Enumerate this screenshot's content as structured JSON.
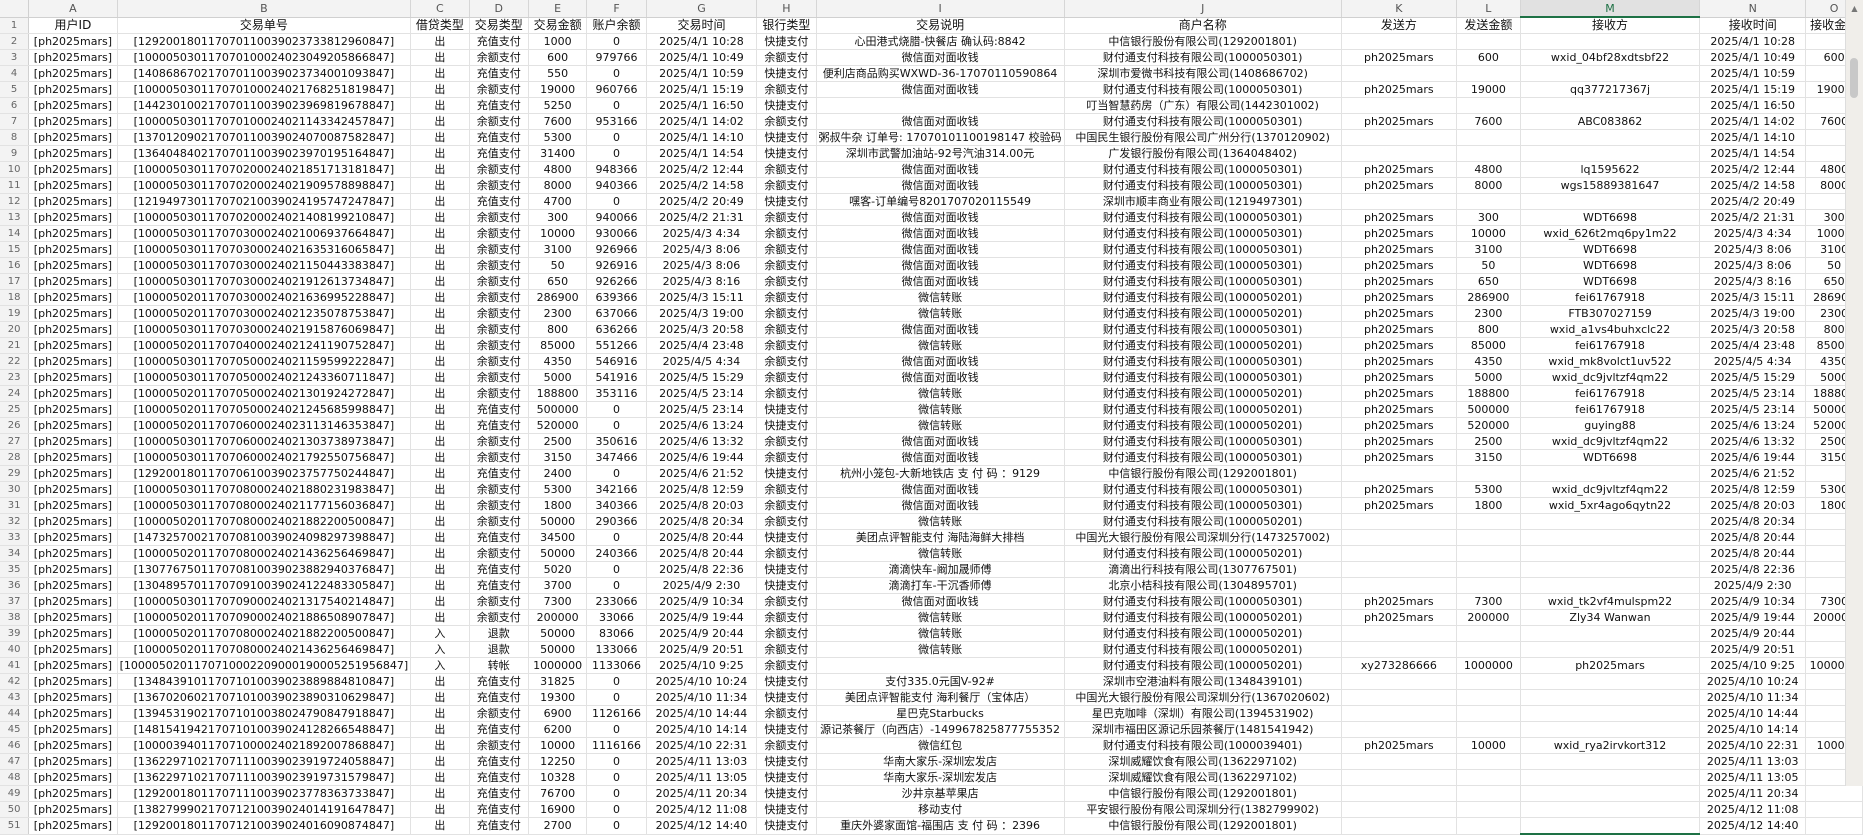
{
  "columns": [
    "A",
    "B",
    "C",
    "D",
    "E",
    "F",
    "G",
    "H",
    "I",
    "J",
    "K",
    "L",
    "M",
    "N",
    "O"
  ],
  "selected_column": "M",
  "accent_color": "#1e7145",
  "headers": [
    "用户ID",
    "交易单号",
    "借贷类型",
    "交易类型",
    "交易金额",
    "账户余额",
    "交易时间",
    "银行类型",
    "交易说明",
    "商户名称",
    "发送方",
    "发送金额",
    "接收方",
    "接收时间",
    "接收金额"
  ],
  "rows": [
    [
      "[ph2025mars]",
      "[129200180117070110039023733812960847]",
      "出",
      "充值支付",
      "1000",
      "0",
      "2025/4/1 10:28",
      "快捷支付",
      "心田港式烧腊-快餐店 确认码:8842",
      "中信银行股份有限公司(1292001801)",
      "",
      "",
      "",
      "2025/4/1 10:28",
      ""
    ],
    [
      "[ph2025mars]",
      "[100005030117070100024023049205866847]",
      "出",
      "余额支付",
      "600",
      "979766",
      "2025/4/1 10:49",
      "余额支付",
      "微信面对面收钱",
      "财付通支付科技有限公司(1000050301)",
      "ph2025mars",
      "600",
      "wxid_04bf28xdtsbf22",
      "2025/4/1 10:49",
      "600"
    ],
    [
      "[ph2025mars]",
      "[140868670217070110039023734001093847]",
      "出",
      "充值支付",
      "550",
      "0",
      "2025/4/1 10:59",
      "快捷支付",
      "便利店商品购买WXWD-36-17070110590864",
      "深圳市爱微书科技有限公司(1408686702)",
      "",
      "",
      "",
      "2025/4/1 10:59",
      ""
    ],
    [
      "[ph2025mars]",
      "[100005030117070100024021768251819847]",
      "出",
      "余额支付",
      "19000",
      "960766",
      "2025/4/1 15:19",
      "余额支付",
      "微信面对面收钱",
      "财付通支付科技有限公司(1000050301)",
      "ph2025mars",
      "19000",
      "qq377217367j",
      "2025/4/1 15:19",
      "19000"
    ],
    [
      "[ph2025mars]",
      "[144230100217070110039023969819678847]",
      "出",
      "充值支付",
      "5250",
      "0",
      "2025/4/1 16:50",
      "快捷支付",
      "",
      "叮当智慧药房（广东）有限公司(1442301002)",
      "",
      "",
      "",
      "2025/4/1 16:50",
      ""
    ],
    [
      "[ph2025mars]",
      "[100005030117070100024021143342457847]",
      "出",
      "余额支付",
      "7600",
      "953166",
      "2025/4/1 14:02",
      "余额支付",
      "微信面对面收钱",
      "财付通支付科技有限公司(1000050301)",
      "ph2025mars",
      "7600",
      "ABC083862",
      "2025/4/1 14:02",
      "7600"
    ],
    [
      "[ph2025mars]",
      "[137012090217070110039024070087582847]",
      "出",
      "充值支付",
      "5300",
      "0",
      "2025/4/1 14:10",
      "快捷支付",
      "粥叔牛杂 订单号: 17070101100198147 校验码",
      "中国民生银行股份有限公司广州分行(1370120902)",
      "",
      "",
      "",
      "2025/4/1 14:10",
      ""
    ],
    [
      "[ph2025mars]",
      "[136404840217070110039023970195164847]",
      "出",
      "充值支付",
      "31400",
      "0",
      "2025/4/1 14:54",
      "快捷支付",
      "深圳市武警加油站-92号汽油314.00元",
      "广发银行股份有限公司(1364048402)",
      "",
      "",
      "",
      "2025/4/1 14:54",
      ""
    ],
    [
      "[ph2025mars]",
      "[100005030117070200024021851713181847]",
      "出",
      "余额支付",
      "4800",
      "948366",
      "2025/4/2 12:44",
      "余额支付",
      "微信面对面收钱",
      "财付通支付科技有限公司(1000050301)",
      "ph2025mars",
      "4800",
      "lq1595622",
      "2025/4/2 12:44",
      "4800"
    ],
    [
      "[ph2025mars]",
      "[100005030117070200024021909578898847]",
      "出",
      "余额支付",
      "8000",
      "940366",
      "2025/4/2 14:58",
      "余额支付",
      "微信面对面收钱",
      "财付通支付科技有限公司(1000050301)",
      "ph2025mars",
      "8000",
      "wgs15889381647",
      "2025/4/2 14:58",
      "8000"
    ],
    [
      "[ph2025mars]",
      "[121949730117070210039024195747247847]",
      "出",
      "充值支付",
      "4700",
      "0",
      "2025/4/2 20:49",
      "快捷支付",
      "嘿客-订单编号8201707020115549",
      "深圳市顺丰商业有限公司(1219497301)",
      "",
      "",
      "",
      "2025/4/2 20:49",
      ""
    ],
    [
      "[ph2025mars]",
      "[100005030117070200024021408199210847]",
      "出",
      "余额支付",
      "300",
      "940066",
      "2025/4/2 21:31",
      "余额支付",
      "微信面对面收钱",
      "财付通支付科技有限公司(1000050301)",
      "ph2025mars",
      "300",
      "WDT6698",
      "2025/4/2 21:31",
      "300"
    ],
    [
      "[ph2025mars]",
      "[100005030117070300024021006937664847]",
      "出",
      "余额支付",
      "10000",
      "930066",
      "2025/4/3 4:34",
      "余额支付",
      "微信面对面收钱",
      "财付通支付科技有限公司(1000050301)",
      "ph2025mars",
      "10000",
      "wxid_626t2mq6py1m22",
      "2025/4/3 4:34",
      "10000"
    ],
    [
      "[ph2025mars]",
      "[100005030117070300024021635316065847]",
      "出",
      "余额支付",
      "3100",
      "926966",
      "2025/4/3 8:06",
      "余额支付",
      "微信面对面收钱",
      "财付通支付科技有限公司(1000050301)",
      "ph2025mars",
      "3100",
      "WDT6698",
      "2025/4/3 8:06",
      "3100"
    ],
    [
      "[ph2025mars]",
      "[100005030117070300024021150443383847]",
      "出",
      "余额支付",
      "50",
      "926916",
      "2025/4/3 8:06",
      "余额支付",
      "微信面对面收钱",
      "财付通支付科技有限公司(1000050301)",
      "ph2025mars",
      "50",
      "WDT6698",
      "2025/4/3 8:06",
      "50"
    ],
    [
      "[ph2025mars]",
      "[100005030117070300024021912613734847]",
      "出",
      "余额支付",
      "650",
      "926266",
      "2025/4/3 8:16",
      "余额支付",
      "微信面对面收钱",
      "财付通支付科技有限公司(1000050301)",
      "ph2025mars",
      "650",
      "WDT6698",
      "2025/4/3 8:16",
      "650"
    ],
    [
      "[ph2025mars]",
      "[100005020117070300024021636995228847]",
      "出",
      "余额支付",
      "286900",
      "639366",
      "2025/4/3 15:11",
      "余额支付",
      "微信转账",
      "财付通支付科技有限公司(1000050201)",
      "ph2025mars",
      "286900",
      "fei61767918",
      "2025/4/3 15:11",
      "286900"
    ],
    [
      "[ph2025mars]",
      "[100005020117070300024021235078753847]",
      "出",
      "余额支付",
      "2300",
      "637066",
      "2025/4/3 19:00",
      "余额支付",
      "微信转账",
      "财付通支付科技有限公司(1000050201)",
      "ph2025mars",
      "2300",
      "FTB307027159",
      "2025/4/3 19:00",
      "2300"
    ],
    [
      "[ph2025mars]",
      "[100005030117070300024021915876069847]",
      "出",
      "余额支付",
      "800",
      "636266",
      "2025/4/3 20:58",
      "余额支付",
      "微信面对面收钱",
      "财付通支付科技有限公司(1000050301)",
      "ph2025mars",
      "800",
      "wxid_a1vs4buhxclc22",
      "2025/4/3 20:58",
      "800"
    ],
    [
      "[ph2025mars]",
      "[100005020117070400024021241190752847]",
      "出",
      "余额支付",
      "85000",
      "551266",
      "2025/4/4 23:48",
      "余额支付",
      "微信转账",
      "财付通支付科技有限公司(1000050201)",
      "ph2025mars",
      "85000",
      "fei61767918",
      "2025/4/4 23:48",
      "85000"
    ],
    [
      "[ph2025mars]",
      "[100005030117070500024021159599222847]",
      "出",
      "余额支付",
      "4350",
      "546916",
      "2025/4/5 4:34",
      "余额支付",
      "微信面对面收钱",
      "财付通支付科技有限公司(1000050301)",
      "ph2025mars",
      "4350",
      "wxid_mk8volct1uv522",
      "2025/4/5 4:34",
      "4350"
    ],
    [
      "[ph2025mars]",
      "[100005030117070500024021243360711847]",
      "出",
      "余额支付",
      "5000",
      "541916",
      "2025/4/5 15:29",
      "余额支付",
      "微信面对面收钱",
      "财付通支付科技有限公司(1000050301)",
      "ph2025mars",
      "5000",
      "wxid_dc9jvltzf4qm22",
      "2025/4/5 15:29",
      "5000"
    ],
    [
      "[ph2025mars]",
      "[100005020117070500024021301924272847]",
      "出",
      "余额支付",
      "188800",
      "353116",
      "2025/4/5 23:14",
      "余额支付",
      "微信转账",
      "财付通支付科技有限公司(1000050201)",
      "ph2025mars",
      "188800",
      "fei61767918",
      "2025/4/5 23:14",
      "188800"
    ],
    [
      "[ph2025mars]",
      "[100005020117070500024021245685998847]",
      "出",
      "充值支付",
      "500000",
      "0",
      "2025/4/5 23:14",
      "快捷支付",
      "微信转账",
      "财付通支付科技有限公司(1000050201)",
      "ph2025mars",
      "500000",
      "fei61767918",
      "2025/4/5 23:14",
      "500000"
    ],
    [
      "[ph2025mars]",
      "[100005020117070600024023113146353847]",
      "出",
      "充值支付",
      "520000",
      "0",
      "2025/4/6 13:24",
      "快捷支付",
      "微信转账",
      "财付通支付科技有限公司(1000050201)",
      "ph2025mars",
      "520000",
      "guying88",
      "2025/4/6 13:24",
      "520000"
    ],
    [
      "[ph2025mars]",
      "[100005030117070600024021303738973847]",
      "出",
      "余额支付",
      "2500",
      "350616",
      "2025/4/6 13:32",
      "余额支付",
      "微信面对面收钱",
      "财付通支付科技有限公司(1000050301)",
      "ph2025mars",
      "2500",
      "wxid_dc9jvltzf4qm22",
      "2025/4/6 13:32",
      "2500"
    ],
    [
      "[ph2025mars]",
      "[100005030117070600024021792550756847]",
      "出",
      "余额支付",
      "3150",
      "347466",
      "2025/4/6 19:44",
      "余额支付",
      "微信面对面收钱",
      "财付通支付科技有限公司(1000050301)",
      "ph2025mars",
      "3150",
      "WDT6698",
      "2025/4/6 19:44",
      "3150"
    ],
    [
      "[ph2025mars]",
      "[129200180117070610039023757750244847]",
      "出",
      "充值支付",
      "2400",
      "0",
      "2025/4/6 21:52",
      "快捷支付",
      "杭州小笼包-大新地铁店 支 付 码 ：9129",
      "中信银行股份有限公司(1292001801)",
      "",
      "",
      "",
      "2025/4/6 21:52",
      ""
    ],
    [
      "[ph2025mars]",
      "[100005030117070800024021880231983847]",
      "出",
      "余额支付",
      "5300",
      "342166",
      "2025/4/8 12:59",
      "余额支付",
      "微信面对面收钱",
      "财付通支付科技有限公司(1000050301)",
      "ph2025mars",
      "5300",
      "wxid_dc9jvltzf4qm22",
      "2025/4/8 12:59",
      "5300"
    ],
    [
      "[ph2025mars]",
      "[100005030117070800024021177156036847]",
      "出",
      "余额支付",
      "1800",
      "340366",
      "2025/4/8 20:03",
      "余额支付",
      "微信面对面收钱",
      "财付通支付科技有限公司(1000050301)",
      "ph2025mars",
      "1800",
      "wxid_5xr4ago6qytn22",
      "2025/4/8 20:03",
      "1800"
    ],
    [
      "[ph2025mars]",
      "[100005020117070800024021882200500847]",
      "出",
      "余额支付",
      "50000",
      "290366",
      "2025/4/8 20:34",
      "余额支付",
      "微信转账",
      "财付通支付科技有限公司(1000050201)",
      "",
      "",
      "",
      "2025/4/8 20:34",
      ""
    ],
    [
      "[ph2025mars]",
      "[147325700217070810039024098297398847]",
      "出",
      "充值支付",
      "34500",
      "0",
      "2025/4/8 20:44",
      "快捷支付",
      "美团点评智能支付 海陆海鲜大排档",
      "中国光大银行股份有限公司深圳分行(1473257002)",
      "",
      "",
      "",
      "2025/4/8 20:44",
      ""
    ],
    [
      "[ph2025mars]",
      "[100005020117070800024021436256469847]",
      "出",
      "余额支付",
      "50000",
      "240366",
      "2025/4/8 20:44",
      "余额支付",
      "微信转账",
      "财付通支付科技有限公司(1000050201)",
      "",
      "",
      "",
      "2025/4/8 20:44",
      ""
    ],
    [
      "[ph2025mars]",
      "[130776750117070810039023882940376847]",
      "出",
      "充值支付",
      "5020",
      "0",
      "2025/4/8 22:36",
      "快捷支付",
      "滴滴快车-阚加晟师傅",
      "滴滴出行科技有限公司(1307767501)",
      "",
      "",
      "",
      "2025/4/8 22:36",
      ""
    ],
    [
      "[ph2025mars]",
      "[130489570117070910039024122483305847]",
      "出",
      "充值支付",
      "3700",
      "0",
      "2025/4/9 2:30",
      "快捷支付",
      "滴滴打车-干沉香师傅",
      "北京小桔科技有限公司(1304895701)",
      "",
      "",
      "",
      "2025/4/9 2:30",
      ""
    ],
    [
      "[ph2025mars]",
      "[100005030117070900024021317540214847]",
      "出",
      "余额支付",
      "7300",
      "233066",
      "2025/4/9 10:34",
      "余额支付",
      "微信面对面收钱",
      "财付通支付科技有限公司(1000050301)",
      "ph2025mars",
      "7300",
      "wxid_tk2vf4mulspm22",
      "2025/4/9 10:34",
      "7300"
    ],
    [
      "[ph2025mars]",
      "[100005020117070900024021886508907847]",
      "出",
      "余额支付",
      "200000",
      "33066",
      "2025/4/9 19:44",
      "余额支付",
      "微信转账",
      "财付通支付科技有限公司(1000050201)",
      "ph2025mars",
      "200000",
      "Zly34 Wanwan",
      "2025/4/9 19:44",
      "200000"
    ],
    [
      "[ph2025mars]",
      "[100005020117070800024021882200500847]",
      "入",
      "退款",
      "50000",
      "83066",
      "2025/4/9 20:44",
      "余额支付",
      "微信转账",
      "财付通支付科技有限公司(1000050201)",
      "",
      "",
      "",
      "2025/4/9 20:44",
      ""
    ],
    [
      "[ph2025mars]",
      "[100005020117070800024021436256469847]",
      "入",
      "退款",
      "50000",
      "133066",
      "2025/4/9 20:51",
      "余额支付",
      "微信转账",
      "财付通支付科技有限公司(1000050201)",
      "",
      "",
      "",
      "2025/4/9 20:51",
      ""
    ],
    [
      "[ph2025mars]",
      "[1000050201170710002209000190005251956847]",
      "入",
      "转帐",
      "1000000",
      "1133066",
      "2025/4/10 9:25",
      "余额支付",
      "",
      "财付通支付科技有限公司(1000050201)",
      "xy273286666",
      "1000000",
      "ph2025mars",
      "2025/4/10 9:25",
      "1000000"
    ],
    [
      "[ph2025mars]",
      "[134843910117071010039023889884810847]",
      "出",
      "充值支付",
      "31825",
      "0",
      "2025/4/10 10:24",
      "快捷支付",
      "支付335.0元国V-92#",
      "深圳市空港油料有限公司(1348439101)",
      "",
      "",
      "",
      "2025/4/10 10:24",
      ""
    ],
    [
      "[ph2025mars]",
      "[136702060217071010039023890310629847]",
      "出",
      "充值支付",
      "19300",
      "0",
      "2025/4/10 11:34",
      "快捷支付",
      "美团点评智能支付 海利餐厅（宝体店）",
      "中国光大银行股份有限公司深圳分行(1367020602)",
      "",
      "",
      "",
      "2025/4/10 11:34",
      ""
    ],
    [
      "[ph2025mars]",
      "[139453190217071010038024790847918847]",
      "出",
      "余额支付",
      "6900",
      "1126166",
      "2025/4/10 14:44",
      "余额支付",
      "星巴克Starbucks",
      "星巴克咖啡（深圳）有限公司(1394531902)",
      "",
      "",
      "",
      "2025/4/10 14:44",
      ""
    ],
    [
      "[ph2025mars]",
      "[148154194217071010039024128266548847]",
      "出",
      "充值支付",
      "6200",
      "0",
      "2025/4/10 14:14",
      "快捷支付",
      "源记茶餐厅（向西店）-149967825877755352",
      "深圳市福田区源记乐园茶餐厅(1481541942)",
      "",
      "",
      "",
      "2025/4/10 14:14",
      ""
    ],
    [
      "[ph2025mars]",
      "[100003940117071000024021892007868847]",
      "出",
      "余额支付",
      "10000",
      "1116166",
      "2025/4/10 22:31",
      "余额支付",
      "微信红包",
      "财付通支付科技有限公司(1000039401)",
      "ph2025mars",
      "10000",
      "wxid_rya2irvkort312",
      "2025/4/10 22:31",
      "10000"
    ],
    [
      "[ph2025mars]",
      "[136229710217071110039023919724058847]",
      "出",
      "充值支付",
      "12250",
      "0",
      "2025/4/11 13:03",
      "快捷支付",
      "华南大家乐-深圳宏发店",
      "深圳威耀饮食有限公司(1362297102)",
      "",
      "",
      "",
      "2025/4/11 13:03",
      ""
    ],
    [
      "[ph2025mars]",
      "[136229710217071110039023919731579847]",
      "出",
      "充值支付",
      "10328",
      "0",
      "2025/4/11 13:05",
      "快捷支付",
      "华南大家乐-深圳宏发店",
      "深圳威耀饮食有限公司(1362297102)",
      "",
      "",
      "",
      "2025/4/11 13:05",
      ""
    ],
    [
      "[ph2025mars]",
      "[129200180117071110039023778363733847]",
      "出",
      "充值支付",
      "76700",
      "0",
      "2025/4/11 20:34",
      "快捷支付",
      "沙井京基苹果店",
      "中信银行股份有限公司(1292001801)",
      "",
      "",
      "",
      "2025/4/11 20:34",
      ""
    ],
    [
      "[ph2025mars]",
      "[138279990217071210039024014191647847]",
      "出",
      "充值支付",
      "16900",
      "0",
      "2025/4/12 11:08",
      "快捷支付",
      "移动支付",
      "平安银行股份有限公司深圳分行(1382799902)",
      "",
      "",
      "",
      "2025/4/12 11:08",
      ""
    ],
    [
      "[ph2025mars]",
      "[129200180117071210039024016090874847]",
      "出",
      "充值支付",
      "2700",
      "0",
      "2025/4/12 14:40",
      "快捷支付",
      "重庆外婆家面馆-福围店 支 付 码 ：2396",
      "中信银行股份有限公司(1292001801)",
      "",
      "",
      "",
      "2025/4/12 14:40",
      ""
    ]
  ]
}
